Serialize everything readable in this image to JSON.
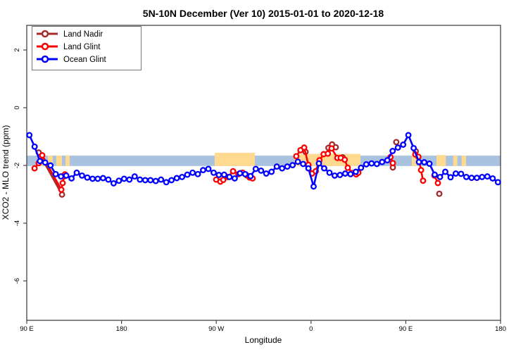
{
  "chart_data": {
    "type": "line",
    "title": "5N-10N December (Ver 10)   2015-01-01 to 2020-12-18",
    "xlabel": "Longitude",
    "ylabel": "XCO2 - MLO trend (ppm)",
    "x_axis": {
      "note": "longitude wrapped eastward starting at 90E",
      "tick_labels": [
        "90 E",
        "180",
        "90 W",
        "0",
        "90 E",
        "180"
      ],
      "tick_values": [
        90,
        180,
        270,
        360,
        450,
        540
      ],
      "range": [
        90,
        540
      ]
    },
    "y_axis": {
      "tick_labels": [
        "2",
        "0",
        "-2",
        "-4",
        "-6"
      ],
      "tick_values": [
        2,
        0,
        -2,
        -4,
        -6
      ],
      "range": [
        -7.4,
        2.9
      ]
    },
    "reference_band": {
      "description": "latitude-band world map strip: ocean band with land patches",
      "v_top": -1.66,
      "v_bottom": -2.02,
      "ocean_color": "#A9C2DF",
      "land_color": "#FFD98F",
      "land_patches": [
        {
          "lon_from": 103.4,
          "lon_to": 106.7,
          "v_top": -1.66
        },
        {
          "lon_from": 110.0,
          "lon_to": 114.7,
          "v_top": -1.66
        },
        {
          "lon_from": 118.0,
          "lon_to": 123.4,
          "v_top": -1.66
        },
        {
          "lon_from": 126.8,
          "lon_to": 130.8,
          "v_top": -1.66
        },
        {
          "lon_from": 268.5,
          "lon_to": 306.7,
          "v_top": -1.56
        },
        {
          "lon_from": 344.0,
          "lon_to": 407.0,
          "v_top": -1.6
        },
        {
          "lon_from": 455.7,
          "lon_to": 460.4,
          "v_top": -1.66
        },
        {
          "lon_from": 479.2,
          "lon_to": 488.0,
          "v_top": -1.64
        },
        {
          "lon_from": 495.0,
          "lon_to": 499.0,
          "v_top": -1.66
        },
        {
          "lon_from": 503.0,
          "lon_to": 507.2,
          "v_top": -1.66
        }
      ]
    },
    "series": [
      {
        "name": "Land Nadir",
        "color": "#A52A2A",
        "segments": [
          [
            [
              101.4,
              -1.55
            ],
            [
              123.5,
              -3.01
            ]
          ],
          [
            [
              354.8,
              -1.53
            ]
          ],
          [
            [
              376.5,
              -1.39
            ],
            [
              380.0,
              -1.27
            ],
            [
              383.5,
              -1.37
            ]
          ],
          [
            [
              390.0,
              -1.72
            ]
          ],
          [
            [
              437.7,
              -2.07
            ]
          ],
          [
            [
              441.0,
              -1.19
            ]
          ],
          [
            [
              459.5,
              -1.51
            ]
          ],
          [
            [
              481.8,
              -2.98
            ]
          ]
        ]
      },
      {
        "name": "Land Glint",
        "color": "#FF0000",
        "segments": [
          [
            [
              97.4,
              -2.1
            ],
            [
              101.4,
              -1.92
            ],
            [
              104.7,
              -1.65
            ],
            [
              122.8,
              -2.84
            ],
            [
              124.1,
              -2.61
            ],
            [
              125.4,
              -2.38
            ],
            [
              126.3,
              -2.31
            ]
          ],
          [
            [
              269.9,
              -2.49
            ],
            [
              273.9,
              -2.56
            ],
            [
              276.7,
              -2.5
            ],
            [
              281.0,
              -2.4
            ],
            [
              286.0,
              -2.2
            ],
            [
              291.0,
              -2.3
            ],
            [
              295.0,
              -2.25
            ],
            [
              298.8,
              -2.34
            ],
            [
              301.7,
              -2.42
            ],
            [
              304.5,
              -2.45
            ]
          ],
          [
            [
              346.0,
              -1.68
            ],
            [
              350.0,
              -1.47
            ],
            [
              353.5,
              -1.38
            ],
            [
              357.5,
              -1.98
            ],
            [
              361.0,
              -2.28
            ],
            [
              364.5,
              -2.2
            ],
            [
              368.0,
              -1.82
            ],
            [
              372.0,
              -1.61
            ],
            [
              376.0,
              -1.59
            ],
            [
              379.5,
              -1.41
            ],
            [
              385.0,
              -1.74
            ],
            [
              388.2,
              -1.74
            ],
            [
              392.0,
              -1.8
            ],
            [
              394.9,
              -2.08
            ],
            [
              399.6,
              -2.26
            ],
            [
              402.9,
              -2.31
            ],
            [
              404.9,
              -2.25
            ]
          ],
          [
            [
              435.5,
              -1.71
            ],
            [
              437.7,
              -1.92
            ]
          ],
          [
            [
              459.0,
              -1.62
            ],
            [
              462.0,
              -1.7
            ],
            [
              464.5,
              -2.16
            ],
            [
              466.4,
              -2.53
            ]
          ],
          [
            [
              477.2,
              -2.35
            ],
            [
              480.5,
              -2.61
            ]
          ]
        ]
      },
      {
        "name": "Ocean Glint",
        "color": "#0000FF",
        "segments": [
          [
            [
              92.5,
              -0.95
            ],
            [
              97.5,
              -1.35
            ],
            [
              102.5,
              -1.85
            ],
            [
              107.5,
              -1.9
            ],
            [
              112.5,
              -2.0
            ],
            [
              117.5,
              -2.3
            ],
            [
              122.5,
              -2.38
            ],
            [
              127.5,
              -2.35
            ],
            [
              132.5,
              -2.45
            ],
            [
              137.5,
              -2.25
            ],
            [
              142.5,
              -2.35
            ],
            [
              147.5,
              -2.42
            ],
            [
              152.5,
              -2.46
            ],
            [
              157.5,
              -2.46
            ],
            [
              162.5,
              -2.44
            ],
            [
              167.5,
              -2.49
            ],
            [
              172.5,
              -2.62
            ],
            [
              177.5,
              -2.53
            ],
            [
              182.5,
              -2.46
            ],
            [
              187.5,
              -2.49
            ],
            [
              192.5,
              -2.38
            ],
            [
              197.5,
              -2.49
            ],
            [
              202.5,
              -2.51
            ],
            [
              207.5,
              -2.51
            ],
            [
              212.5,
              -2.54
            ],
            [
              217.5,
              -2.49
            ],
            [
              222.5,
              -2.58
            ],
            [
              227.5,
              -2.51
            ],
            [
              232.5,
              -2.44
            ],
            [
              237.5,
              -2.4
            ],
            [
              242.5,
              -2.32
            ],
            [
              247.5,
              -2.25
            ],
            [
              252.5,
              -2.3
            ],
            [
              257.5,
              -2.16
            ],
            [
              262.5,
              -2.12
            ],
            [
              267.5,
              -2.25
            ],
            [
              272.5,
              -2.33
            ],
            [
              277.5,
              -2.32
            ],
            [
              282.5,
              -2.4
            ],
            [
              287.5,
              -2.45
            ],
            [
              292.5,
              -2.27
            ],
            [
              297.5,
              -2.3
            ],
            [
              302.5,
              -2.37
            ],
            [
              307.5,
              -2.12
            ],
            [
              312.5,
              -2.18
            ],
            [
              317.5,
              -2.28
            ],
            [
              322.5,
              -2.22
            ],
            [
              327.5,
              -2.04
            ],
            [
              332.5,
              -2.1
            ],
            [
              337.5,
              -2.04
            ],
            [
              342.5,
              -1.99
            ],
            [
              347.5,
              -1.87
            ],
            [
              352.5,
              -1.95
            ],
            [
              357.5,
              -2.1
            ],
            [
              362.5,
              -2.73
            ],
            [
              367.5,
              -1.93
            ],
            [
              372.5,
              -2.1
            ],
            [
              377.5,
              -2.25
            ],
            [
              382.5,
              -2.35
            ],
            [
              387.5,
              -2.33
            ],
            [
              392.5,
              -2.28
            ],
            [
              397.5,
              -2.3
            ],
            [
              402.5,
              -2.22
            ],
            [
              407.5,
              -2.08
            ],
            [
              412.5,
              -1.96
            ],
            [
              417.5,
              -1.93
            ],
            [
              422.5,
              -1.95
            ],
            [
              427.5,
              -1.88
            ],
            [
              432.5,
              -1.82
            ],
            [
              437.5,
              -1.5
            ],
            [
              442.5,
              -1.38
            ],
            [
              447.5,
              -1.28
            ],
            [
              452.5,
              -0.95
            ],
            [
              457.5,
              -1.4
            ],
            [
              462.5,
              -1.88
            ],
            [
              467.5,
              -1.89
            ],
            [
              472.5,
              -1.94
            ],
            [
              477.5,
              -2.32
            ],
            [
              482.5,
              -2.4
            ],
            [
              487.5,
              -2.22
            ],
            [
              492.5,
              -2.41
            ],
            [
              497.5,
              -2.28
            ],
            [
              502.5,
              -2.29
            ],
            [
              507.5,
              -2.4
            ],
            [
              512.5,
              -2.43
            ],
            [
              517.5,
              -2.43
            ],
            [
              522.5,
              -2.4
            ],
            [
              527.5,
              -2.38
            ],
            [
              532.5,
              -2.45
            ],
            [
              537.5,
              -2.58
            ]
          ]
        ]
      }
    ],
    "legend": {
      "position": "top-left",
      "entries": [
        "Land Nadir",
        "Land Glint",
        "Ocean Glint"
      ]
    },
    "grid": false,
    "frame_color": "#444444",
    "background_color": "#FFFFFF"
  }
}
